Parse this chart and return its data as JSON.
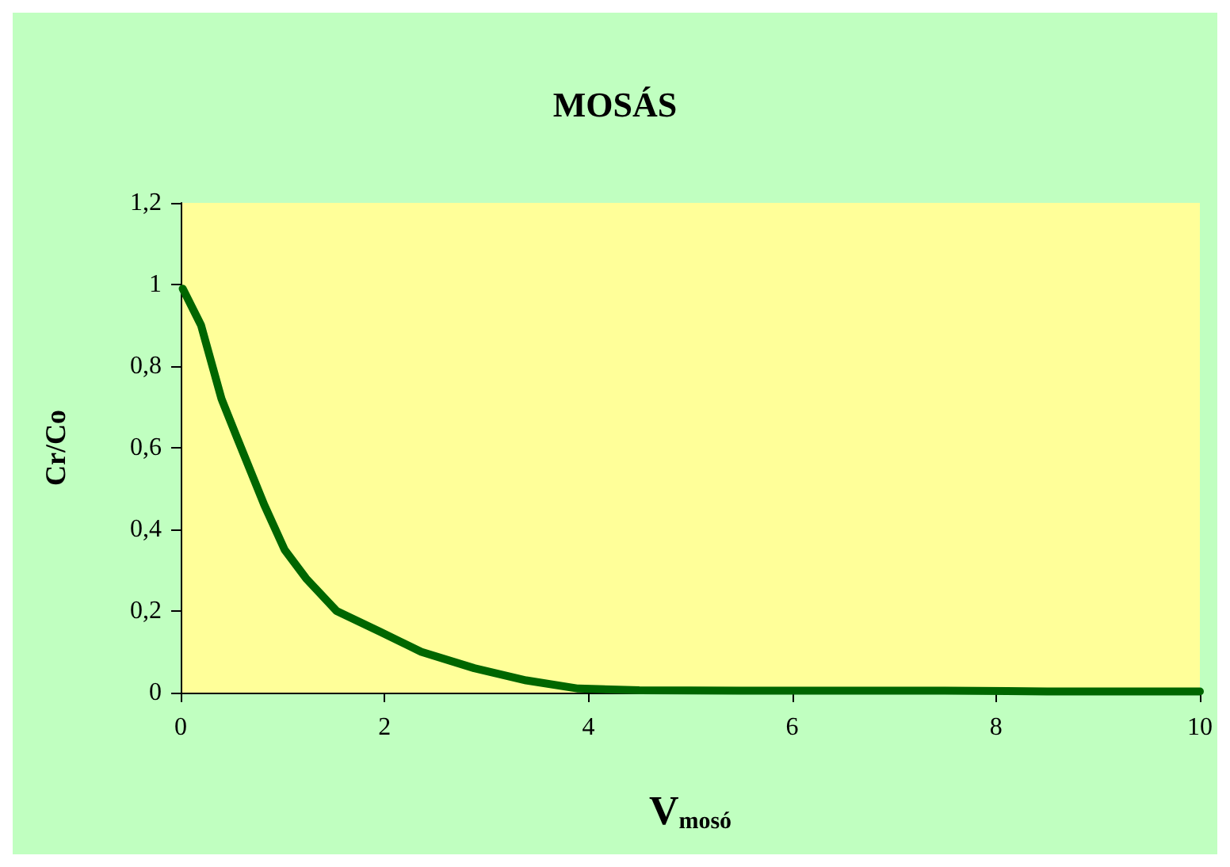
{
  "chart_data": {
    "type": "line",
    "title": "MOSÁS",
    "xlabel": "V$_{mosó}$",
    "ylabel": "Cr/Co",
    "x": [
      0.02,
      0.2,
      0.4,
      0.56,
      0.82,
      1.02,
      1.23,
      1.53,
      1.95,
      2.36,
      2.88,
      3.39,
      3.9,
      4.5,
      5.5,
      6.5,
      7.5,
      8.5,
      10
    ],
    "series": [
      {
        "color": "#006600",
        "values": [
          0.99,
          0.9,
          0.72,
          0.62,
          0.46,
          0.35,
          0.28,
          0.2,
          0.15,
          0.1,
          0.06,
          0.03,
          0.01,
          0.006,
          0.005,
          0.005,
          0.005,
          0.003,
          0.003
        ]
      }
    ],
    "xlim": [
      0,
      10
    ],
    "xticks": [
      0,
      2,
      4,
      6,
      8,
      10
    ],
    "ylim": [
      0,
      1.2
    ],
    "yticks": [
      0,
      {
        "value": 0.2,
        "label": "0,2"
      },
      {
        "value": 0.4,
        "label": "0,4"
      },
      {
        "value": 0.6,
        "label": "0,6"
      },
      {
        "value": 0.8,
        "label": "0,8"
      },
      1,
      {
        "value": 1.2,
        "label": "1,2"
      }
    ],
    "grid": false,
    "marker": "none",
    "line_style": "solid"
  }
}
